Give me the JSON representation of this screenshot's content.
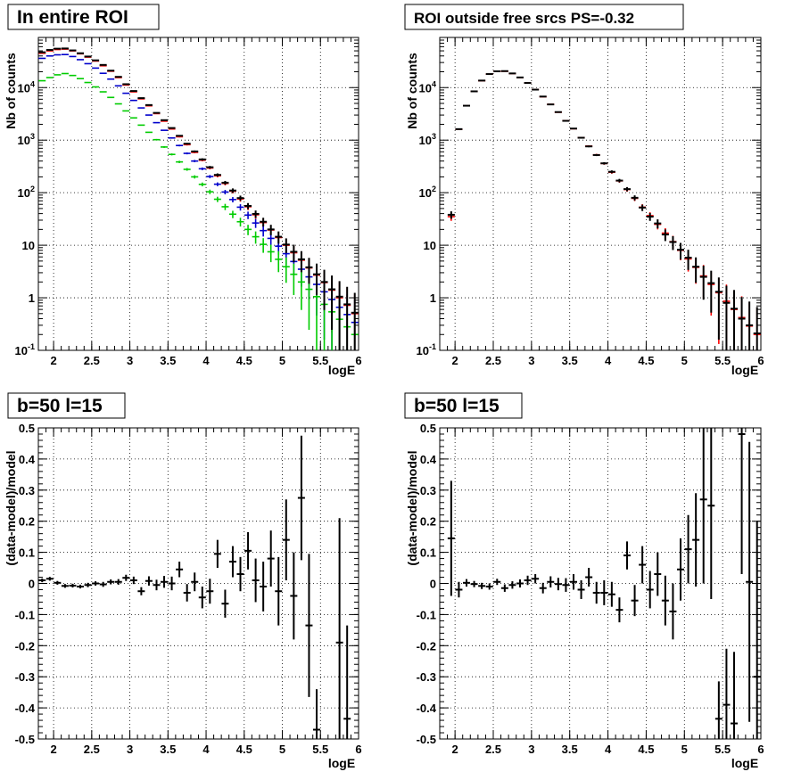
{
  "chart_data": [
    {
      "type": "scatter",
      "title": "In entire ROI",
      "xlabel": "logE",
      "ylabel": "Nb of counts",
      "xlim": [
        1.8,
        6.0
      ],
      "ylim": [
        0.1,
        90000
      ],
      "yscale": "log",
      "grid": true,
      "x_ticks": [
        "2",
        "2.5",
        "3",
        "3.5",
        "4",
        "4.5",
        "5",
        "5.5",
        "6"
      ],
      "y_ticks": [
        "10^-1",
        "1",
        "10",
        "10^2",
        "10^3",
        "10^4"
      ],
      "x": [
        1.85,
        1.95,
        2.05,
        2.15,
        2.25,
        2.35,
        2.45,
        2.55,
        2.65,
        2.75,
        2.85,
        2.95,
        3.05,
        3.15,
        3.25,
        3.35,
        3.45,
        3.55,
        3.65,
        3.75,
        3.85,
        3.95,
        4.05,
        4.15,
        4.25,
        4.35,
        4.45,
        4.55,
        4.65,
        4.75,
        4.85,
        4.95,
        5.05,
        5.15,
        5.25,
        5.35,
        5.45,
        5.55,
        5.65,
        5.75,
        5.85,
        5.95
      ],
      "series": [
        {
          "color": "#ff0000",
          "values": [
            45000,
            50000,
            53000,
            54000,
            50000,
            44000,
            38000,
            32000,
            26000,
            20500,
            15500,
            11200,
            8300,
            6100,
            4500,
            3200,
            2300,
            1630,
            1160,
            820,
            585,
            415,
            295,
            210,
            150,
            107,
            76,
            54,
            38,
            27,
            19.5,
            14,
            10,
            7.2,
            5.2,
            3.7,
            2.7,
            1.95,
            1.4,
            1.0,
            0.72,
            0.5
          ],
          "yerr_upper": [
            0,
            0,
            0,
            0,
            0,
            0,
            0,
            0,
            0,
            0,
            0,
            0,
            0,
            0,
            0,
            0,
            0,
            0,
            0,
            0,
            0,
            0,
            0,
            0,
            0,
            0,
            0,
            0,
            0,
            0,
            0,
            0,
            0,
            0,
            0,
            0,
            0,
            0,
            0,
            0,
            0,
            0
          ]
        },
        {
          "color": "#0000cc",
          "values": [
            36000,
            40000,
            42000,
            42500,
            39000,
            34000,
            28500,
            23500,
            18700,
            14500,
            10800,
            7800,
            5700,
            4100,
            3000,
            2150,
            1540,
            1100,
            790,
            560,
            400,
            285,
            203,
            145,
            103,
            74,
            53,
            37.5,
            26.5,
            19,
            13.5,
            9.6,
            6.9,
            4.9,
            3.5,
            2.5,
            1.8,
            1.3,
            0.93,
            0.66,
            0.48,
            0.34
          ]
        },
        {
          "color": "#00cc00",
          "values": [
            13500,
            15500,
            17500,
            18500,
            17000,
            14800,
            12500,
            10300,
            8300,
            6500,
            4900,
            3600,
            2650,
            1930,
            1410,
            1020,
            740,
            535,
            385,
            278,
            200,
            144,
            104,
            75,
            54,
            39,
            28,
            20,
            14.5,
            10.4,
            7.5,
            5.4,
            3.9,
            2.8,
            2.0,
            1.45,
            1.05,
            0.75,
            0.54,
            0.39,
            0.28,
            0.2
          ]
        },
        {
          "color": "#000000",
          "values": [
            47000,
            52000,
            55000,
            55500,
            51000,
            45000,
            39000,
            33000,
            27000,
            21000,
            16000,
            11600,
            8600,
            6300,
            4650,
            3300,
            2400,
            1700,
            1210,
            855,
            610,
            430,
            305,
            218,
            155,
            110,
            79,
            56,
            39.5,
            28,
            20,
            14.5,
            10.3,
            7.5,
            5.4,
            3.8,
            2.8,
            2.0,
            1.45,
            1.05,
            0.75,
            0.52
          ]
        }
      ]
    },
    {
      "type": "scatter",
      "title": "ROI outside free srcs PS=-0.32",
      "xlabel": "logE",
      "ylabel": "Nb of counts",
      "xlim": [
        1.8,
        6.0
      ],
      "ylim": [
        0.1,
        90000
      ],
      "yscale": "log",
      "grid": true,
      "x_ticks": [
        "2",
        "2.5",
        "3",
        "3.5",
        "4",
        "4.5",
        "5",
        "5.5",
        "6"
      ],
      "y_ticks": [
        "10^-1",
        "1",
        "10",
        "10^2",
        "10^3",
        "10^4"
      ],
      "x": [
        1.95,
        2.05,
        2.15,
        2.25,
        2.35,
        2.45,
        2.55,
        2.65,
        2.75,
        2.85,
        2.95,
        3.05,
        3.15,
        3.25,
        3.35,
        3.45,
        3.55,
        3.65,
        3.75,
        3.85,
        3.95,
        4.05,
        4.15,
        4.25,
        4.35,
        4.45,
        4.55,
        4.65,
        4.75,
        4.85,
        4.95,
        5.05,
        5.15,
        5.25,
        5.35,
        5.45,
        5.55,
        5.65,
        5.75,
        5.85,
        5.95
      ],
      "series": [
        {
          "color": "#ff0000",
          "values": [
            35,
            1600,
            4500,
            8500,
            13500,
            18000,
            20500,
            20500,
            18500,
            15500,
            12200,
            9200,
            6700,
            4800,
            3400,
            2350,
            1650,
            1120,
            770,
            525,
            360,
            245,
            168,
            115,
            78,
            53,
            36.5,
            25,
            17,
            11.7,
            8.0,
            5.5,
            3.8,
            2.6,
            1.8,
            1.25,
            0.86,
            0.6,
            0.42,
            0.29,
            0.2
          ]
        },
        {
          "color": "#000000",
          "values": [
            38,
            1620,
            4520,
            8480,
            13600,
            18100,
            20400,
            20600,
            18600,
            15600,
            12250,
            9150,
            6750,
            4780,
            3420,
            2330,
            1660,
            1110,
            760,
            520,
            362,
            250,
            170,
            117,
            80,
            52,
            35,
            26,
            16,
            11.5,
            8.2,
            5.8,
            3.9,
            2.5,
            1.9,
            1.3,
            0.8,
            0.62,
            0.4,
            0.3,
            0.21
          ]
        }
      ]
    },
    {
      "type": "scatter",
      "title": "b=50 l=15",
      "xlabel": "logE",
      "ylabel": "(data-model)/model",
      "xlim": [
        1.8,
        6.0
      ],
      "ylim": [
        -0.5,
        0.5
      ],
      "grid": true,
      "x_ticks": [
        "2",
        "2.5",
        "3",
        "3.5",
        "4",
        "4.5",
        "5",
        "5.5",
        "6"
      ],
      "y_ticks": [
        "-0.5",
        "-0.4",
        "-0.3",
        "-0.2",
        "-0.1",
        "0",
        "0.1",
        "0.2",
        "0.3",
        "0.4",
        "0.5"
      ],
      "x": [
        1.85,
        1.95,
        2.05,
        2.15,
        2.25,
        2.35,
        2.45,
        2.55,
        2.65,
        2.75,
        2.85,
        2.95,
        3.05,
        3.15,
        3.25,
        3.35,
        3.45,
        3.55,
        3.65,
        3.75,
        3.85,
        3.95,
        4.05,
        4.15,
        4.25,
        4.35,
        4.45,
        4.55,
        4.65,
        4.75,
        4.85,
        4.95,
        5.05,
        5.15,
        5.25,
        5.35,
        5.45,
        5.55,
        5.65,
        5.75,
        5.85,
        5.95
      ],
      "values": [
        0.01,
        0.015,
        0.002,
        -0.008,
        -0.007,
        -0.01,
        -0.005,
        0.0,
        -0.003,
        0.005,
        0.005,
        0.018,
        0.01,
        -0.025,
        0.008,
        -0.005,
        0.005,
        0.0,
        0.045,
        -0.03,
        0.005,
        -0.045,
        -0.025,
        0.095,
        -0.065,
        0.07,
        0.03,
        0.105,
        0.01,
        -0.01,
        0.08,
        -0.025,
        0.14,
        -0.04,
        0.275,
        -0.135,
        -0.47,
        null,
        null,
        -0.19,
        -0.435,
        null
      ],
      "yerr": [
        0.006,
        0.006,
        0.006,
        0.006,
        0.006,
        0.006,
        0.007,
        0.007,
        0.008,
        0.008,
        0.009,
        0.01,
        0.012,
        0.013,
        0.015,
        0.017,
        0.019,
        0.022,
        0.025,
        0.028,
        0.03,
        0.035,
        0.04,
        0.045,
        0.045,
        0.05,
        0.055,
        0.06,
        0.07,
        0.08,
        0.09,
        0.11,
        0.13,
        0.14,
        0.2,
        0.23,
        0.13,
        0,
        0,
        0.4,
        0.3,
        0
      ]
    },
    {
      "type": "scatter",
      "title": "b=50 l=15",
      "xlabel": "logE",
      "ylabel": "(data-model)/model",
      "xlim": [
        1.8,
        6.0
      ],
      "ylim": [
        -0.5,
        0.5
      ],
      "grid": true,
      "x_ticks": [
        "2",
        "2.5",
        "3",
        "3.5",
        "4",
        "4.5",
        "5",
        "5.5",
        "6"
      ],
      "y_ticks": [
        "-0.5",
        "-0.4",
        "-0.3",
        "-0.2",
        "-0.1",
        "0",
        "0.1",
        "0.2",
        "0.3",
        "0.4",
        "0.5"
      ],
      "x": [
        1.95,
        2.05,
        2.15,
        2.25,
        2.35,
        2.45,
        2.55,
        2.65,
        2.75,
        2.85,
        2.95,
        3.05,
        3.15,
        3.25,
        3.35,
        3.45,
        3.55,
        3.65,
        3.75,
        3.85,
        3.95,
        4.05,
        4.15,
        4.25,
        4.35,
        4.45,
        4.55,
        4.65,
        4.75,
        4.85,
        4.95,
        5.05,
        5.15,
        5.25,
        5.35,
        5.45,
        5.55,
        5.65,
        5.75,
        5.85,
        5.95
      ],
      "values": [
        0.145,
        -0.02,
        0.002,
        -0.002,
        -0.008,
        -0.01,
        0.005,
        -0.015,
        -0.005,
        0.0,
        0.01,
        0.015,
        -0.015,
        0.005,
        -0.002,
        -0.005,
        0.005,
        -0.02,
        0.02,
        -0.03,
        -0.03,
        -0.035,
        -0.085,
        0.09,
        -0.055,
        0.06,
        -0.02,
        0.03,
        -0.055,
        -0.09,
        0.045,
        0.11,
        0.14,
        0.27,
        0.25,
        -0.435,
        -0.39,
        -0.45,
        0.48,
        0.005,
        -0.3
      ],
      "yerr": [
        0.185,
        0.025,
        0.012,
        0.01,
        0.01,
        0.01,
        0.01,
        0.012,
        0.012,
        0.013,
        0.015,
        0.015,
        0.017,
        0.018,
        0.02,
        0.022,
        0.025,
        0.03,
        0.03,
        0.035,
        0.04,
        0.04,
        0.04,
        0.045,
        0.05,
        0.06,
        0.06,
        0.07,
        0.08,
        0.09,
        0.1,
        0.11,
        0.15,
        0.27,
        0.3,
        0.12,
        0.18,
        0.23,
        0.45,
        0.45,
        0.5
      ]
    }
  ]
}
